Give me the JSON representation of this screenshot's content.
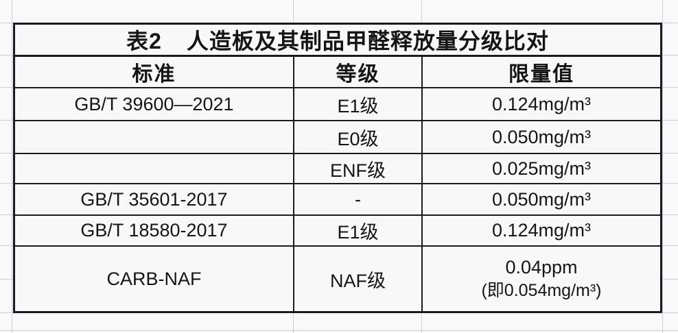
{
  "colors": {
    "background": "#f8f9fb",
    "cell_background": "#f8f8fa",
    "gridline": "#c9cdd6",
    "table_border": "#1a1a1e",
    "text": "#151515"
  },
  "table": {
    "title": {
      "number": "表2",
      "text": "人造板及其制品甲醛释放量分级比对"
    },
    "columns": [
      "标准",
      "等级",
      "限量值"
    ],
    "rows": [
      {
        "standard": "GB/T 39600—2021",
        "grade": "E1级",
        "limit": "0.124mg/m³"
      },
      {
        "standard": "",
        "grade": "E0级",
        "limit": "0.050mg/m³"
      },
      {
        "standard": "",
        "grade": "ENF级",
        "limit": "0.025mg/m³"
      },
      {
        "standard": "GB/T 35601-2017",
        "grade": "-",
        "limit": "0.050mg/m³"
      },
      {
        "standard": "GB/T 18580-2017",
        "grade": "E1级",
        "limit": "0.124mg/m³"
      },
      {
        "standard": "CARB-NAF",
        "grade": "NAF级",
        "limit": "0.04ppm",
        "limit_note": "(即0.054mg/m³)"
      }
    ]
  }
}
